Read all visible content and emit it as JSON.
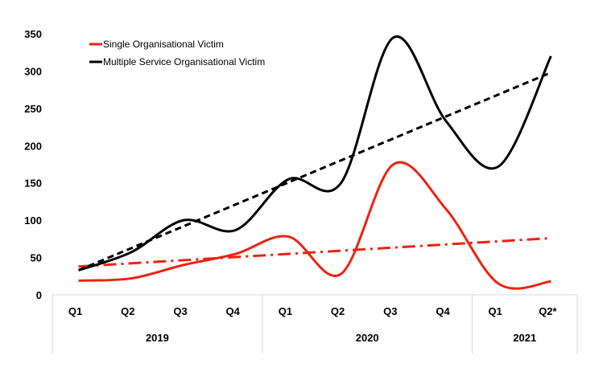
{
  "chart_data": {
    "type": "line",
    "title": "",
    "xlabel": "",
    "ylabel": "",
    "ylim": [
      0,
      350
    ],
    "yticks": [
      0,
      50,
      100,
      150,
      200,
      250,
      300,
      350
    ],
    "grid": false,
    "legend_position": "top-left",
    "categories": [
      "Q1",
      "Q2",
      "Q3",
      "Q4",
      "Q1",
      "Q2",
      "Q3",
      "Q4",
      "Q1",
      "Q2*"
    ],
    "groups": [
      {
        "label": "2019",
        "count": 4
      },
      {
        "label": "2020",
        "count": 4
      },
      {
        "label": "2021",
        "count": 2
      }
    ],
    "series": [
      {
        "name": "Single Organisational Victim",
        "color": "#ee2211",
        "smooth": true,
        "values": [
          19,
          22,
          40,
          55,
          78,
          28,
          175,
          115,
          15,
          18
        ],
        "trendline": {
          "style": "dash-dot",
          "start": 38,
          "end": 76
        }
      },
      {
        "name": "Multiple Service Organisational Victim",
        "color": "#000000",
        "smooth": true,
        "values": [
          33,
          57,
          100,
          87,
          155,
          150,
          345,
          233,
          172,
          320
        ],
        "trendline": {
          "style": "dashed",
          "start": 33,
          "end": 298
        }
      }
    ]
  }
}
